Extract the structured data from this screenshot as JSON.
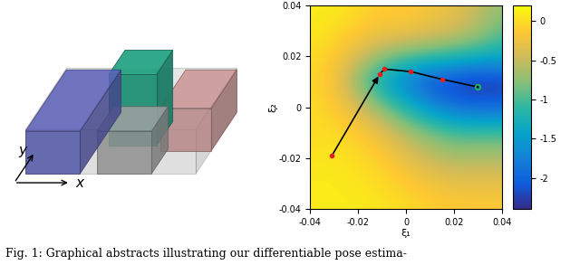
{
  "caption": "Fig. 1: Graphical abstracts illustrating our differentiable pose estima-",
  "scene": {
    "axis_labels": {
      "x": "x",
      "y": "y"
    }
  },
  "chart_data": {
    "type": "heatmap",
    "xlabel": "ξ₁",
    "ylabel": "ξ₂",
    "xlim": [
      -0.04,
      0.04
    ],
    "ylim": [
      -0.04,
      0.04
    ],
    "xticks": [
      -0.04,
      -0.02,
      0,
      0.02,
      0.04
    ],
    "yticks": [
      -0.04,
      -0.02,
      0,
      0.02,
      0.04
    ],
    "cell_x": [
      -0.04,
      -0.03,
      -0.02,
      -0.01,
      0,
      0.01,
      0.02,
      0.03,
      0.04
    ],
    "cell_y": [
      -0.04,
      -0.03,
      -0.02,
      -0.01,
      0,
      0.01,
      0.02,
      0.03,
      0.04
    ],
    "cells": [
      [
        0.1,
        0.1,
        0.1,
        0.05,
        0,
        -0.05,
        -0.1,
        -0.1,
        -0.1
      ],
      [
        0.1,
        0.1,
        0.05,
        0,
        -0.1,
        -0.2,
        -0.3,
        -0.3,
        -0.3
      ],
      [
        0.05,
        0.05,
        0,
        -0.1,
        -0.3,
        -0.5,
        -0.6,
        -0.6,
        -0.6
      ],
      [
        0,
        0,
        -0.1,
        -0.3,
        -0.6,
        -0.8,
        -1.0,
        -1.0,
        -1.0
      ],
      [
        0,
        -0.1,
        -0.4,
        -0.8,
        -1.2,
        -1.6,
        -1.9,
        -2.0,
        -2.0
      ],
      [
        0,
        -0.2,
        -0.8,
        -1.4,
        -1.8,
        -2.2,
        -2.3,
        -2.4,
        -2.3
      ],
      [
        0,
        -0.1,
        -0.4,
        -0.7,
        -0.9,
        -1.0,
        -1.1,
        -1.2,
        -1.3
      ],
      [
        0.1,
        0,
        -0.1,
        -0.2,
        -0.2,
        -0.3,
        -0.4,
        -0.6,
        -0.9
      ],
      [
        0.1,
        0.1,
        0,
        -0.1,
        -0.1,
        -0.2,
        -0.3,
        -0.5,
        -0.7
      ]
    ],
    "colorbar_range": [
      -2.4,
      0.2
    ],
    "colorbar_ticks": [
      0,
      -0.5,
      -1,
      -1.5,
      -2
    ],
    "path": {
      "x": [
        -0.031,
        -0.011,
        -0.009,
        0.002,
        0.015,
        0.03
      ],
      "y": [
        -0.019,
        0.013,
        0.015,
        0.014,
        0.011,
        0.008
      ],
      "color": "#000000",
      "colors": [
        "#e02020",
        "#e02020",
        "#e02020",
        "#e02020",
        "#e02020",
        "#20c040"
      ]
    }
  }
}
